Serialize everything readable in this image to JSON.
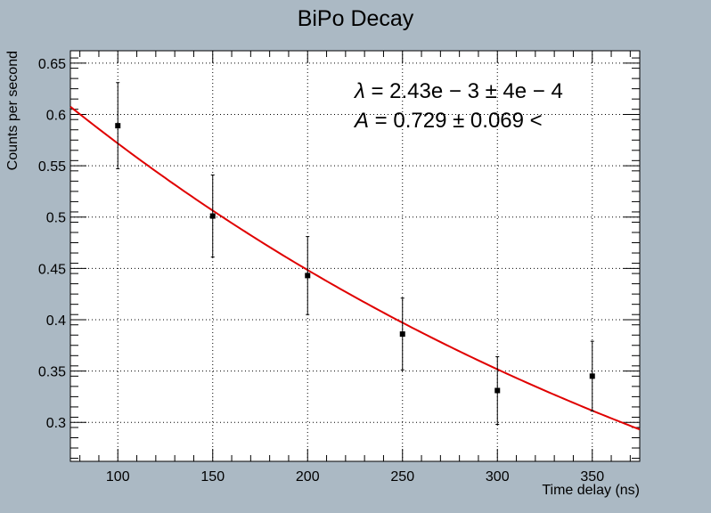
{
  "chart_data": {
    "type": "scatter",
    "title": "BiPo Decay",
    "xlabel": "Time delay (ns)",
    "ylabel": "Counts per second",
    "xlim": [
      75,
      375
    ],
    "ylim": [
      0.262,
      0.662
    ],
    "x_ticks": [
      100,
      150,
      200,
      250,
      300,
      350
    ],
    "x_tick_labels": [
      "100",
      "150",
      "200",
      "250",
      "300",
      "350"
    ],
    "y_ticks": [
      0.3,
      0.35,
      0.4,
      0.45,
      0.5,
      0.55,
      0.6,
      0.65
    ],
    "y_tick_labels": [
      "0.3",
      "0.35",
      "0.4",
      "0.45",
      "0.5",
      "0.55",
      "0.6",
      "0.65"
    ],
    "grid": true,
    "series": [
      {
        "type": "scatter-errorbars",
        "x": [
          100,
          150,
          200,
          250,
          300,
          350
        ],
        "y": [
          0.589,
          0.501,
          0.443,
          0.386,
          0.331,
          0.345
        ],
        "y_err": [
          0.042,
          0.04,
          0.038,
          0.035,
          0.033,
          0.034
        ],
        "color": "#000000"
      },
      {
        "type": "fit",
        "model": "exponential decay A*exp(-lambda*x)",
        "A": 0.729,
        "lambda": 0.00243,
        "x_range": [
          75,
          375
        ],
        "color": "#e00000"
      }
    ],
    "annotations": [
      {
        "symbol": "λ",
        "rest": " = 2.43e − 3 ± 4e − 4"
      },
      {
        "symbol": "A",
        "rest": " = 0.729 ± 0.069 <"
      }
    ]
  }
}
